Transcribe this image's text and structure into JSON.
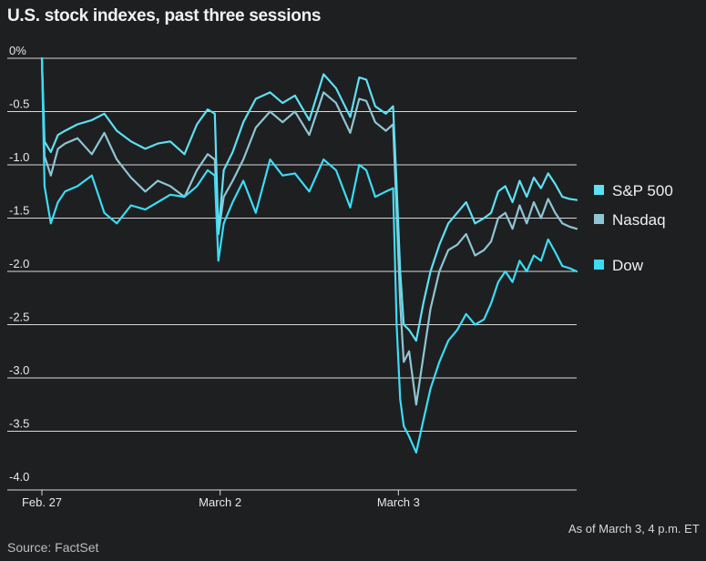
{
  "title": "U.S. stock indexes, past three sessions",
  "note": "As of March 3, 4 p.m. ET",
  "source": "Source: FactSet",
  "chart_data": {
    "type": "line",
    "title": "U.S. stock indexes, past three sessions",
    "ylim": [
      -4.0,
      0.0
    ],
    "y_ticks": [
      0,
      -0.5,
      -1.0,
      -1.5,
      -2.0,
      -2.5,
      -3.0,
      -3.5,
      -4.0
    ],
    "y_tick_labels": [
      "0%",
      "-0.5",
      "-1.0",
      "-1.5",
      "-2.0",
      "-2.5",
      "-3.0",
      "-3.5",
      "-4.0"
    ],
    "x_range": [
      0,
      30
    ],
    "x_ticks": [
      0,
      10,
      20
    ],
    "x_tick_labels": [
      "Feb. 27",
      "March 2",
      "March 3"
    ],
    "grid": true,
    "legend": "right",
    "series": [
      {
        "name": "S&P 500",
        "color": "#5ee0f2",
        "x": [
          0,
          0.15,
          0.5,
          0.9,
          1.3,
          2,
          2.8,
          3.5,
          4.2,
          5,
          5.8,
          6.5,
          7.2,
          8,
          8.7,
          9.3,
          9.7,
          9.9,
          10.2,
          10.7,
          11.3,
          12,
          12.8,
          13.5,
          14.2,
          15,
          15.8,
          16.5,
          17.3,
          17.8,
          18.2,
          18.7,
          19.3,
          19.7,
          19.9,
          20.1,
          20.3,
          20.6,
          21,
          21.4,
          21.8,
          22.3,
          22.8,
          23.3,
          23.8,
          24.3,
          24.8,
          25.2,
          25.6,
          26,
          26.4,
          26.8,
          27.2,
          27.6,
          28,
          28.4,
          28.8,
          29.2,
          29.6,
          30
        ],
        "values": [
          0,
          -0.78,
          -0.88,
          -0.72,
          -0.68,
          -0.62,
          -0.58,
          -0.52,
          -0.68,
          -0.78,
          -0.85,
          -0.8,
          -0.78,
          -0.9,
          -0.62,
          -0.48,
          -0.52,
          -1.65,
          -1.05,
          -0.88,
          -0.6,
          -0.38,
          -0.32,
          -0.42,
          -0.35,
          -0.58,
          -0.15,
          -0.28,
          -0.55,
          -0.18,
          -0.2,
          -0.45,
          -0.52,
          -0.45,
          -1.2,
          -2.0,
          -2.5,
          -2.55,
          -2.65,
          -2.3,
          -2.0,
          -1.75,
          -1.55,
          -1.45,
          -1.35,
          -1.55,
          -1.5,
          -1.45,
          -1.25,
          -1.2,
          -1.35,
          -1.15,
          -1.3,
          -1.12,
          -1.22,
          -1.08,
          -1.18,
          -1.3,
          -1.32,
          -1.33
        ]
      },
      {
        "name": "Nasdaq",
        "color": "#8fc5d3",
        "x": [
          0,
          0.15,
          0.5,
          0.9,
          1.3,
          2,
          2.8,
          3.5,
          4.2,
          5,
          5.8,
          6.5,
          7.2,
          8,
          8.7,
          9.3,
          9.7,
          9.9,
          10.2,
          10.7,
          11.3,
          12,
          12.8,
          13.5,
          14.2,
          15,
          15.8,
          16.5,
          17.3,
          17.8,
          18.2,
          18.7,
          19.3,
          19.7,
          19.9,
          20.1,
          20.3,
          20.6,
          21,
          21.4,
          21.8,
          22.3,
          22.8,
          23.3,
          23.8,
          24.3,
          24.8,
          25.2,
          25.6,
          26,
          26.4,
          26.8,
          27.2,
          27.6,
          28,
          28.4,
          28.8,
          29.2,
          29.6,
          30
        ],
        "values": [
          0,
          -0.92,
          -1.1,
          -0.85,
          -0.8,
          -0.75,
          -0.9,
          -0.7,
          -0.95,
          -1.12,
          -1.25,
          -1.15,
          -1.2,
          -1.3,
          -1.05,
          -0.9,
          -0.95,
          -1.65,
          -1.3,
          -1.15,
          -0.95,
          -0.65,
          -0.5,
          -0.6,
          -0.5,
          -0.72,
          -0.32,
          -0.42,
          -0.7,
          -0.38,
          -0.4,
          -0.6,
          -0.68,
          -0.62,
          -1.45,
          -2.3,
          -2.85,
          -2.75,
          -3.25,
          -2.8,
          -2.35,
          -2.0,
          -1.8,
          -1.75,
          -1.65,
          -1.85,
          -1.8,
          -1.72,
          -1.5,
          -1.45,
          -1.6,
          -1.38,
          -1.55,
          -1.35,
          -1.5,
          -1.32,
          -1.45,
          -1.55,
          -1.58,
          -1.6
        ]
      },
      {
        "name": "Dow",
        "color": "#3bdcf5",
        "x": [
          0,
          0.15,
          0.5,
          0.9,
          1.3,
          2,
          2.8,
          3.5,
          4.2,
          5,
          5.8,
          6.5,
          7.2,
          8,
          8.7,
          9.3,
          9.7,
          9.9,
          10.2,
          10.7,
          11.3,
          12,
          12.8,
          13.5,
          14.2,
          15,
          15.8,
          16.5,
          17.3,
          17.8,
          18.2,
          18.7,
          19.3,
          19.7,
          19.9,
          20.1,
          20.3,
          20.6,
          21,
          21.4,
          21.8,
          22.3,
          22.8,
          23.3,
          23.8,
          24.3,
          24.8,
          25.2,
          25.6,
          26,
          26.4,
          26.8,
          27.2,
          27.6,
          28,
          28.4,
          28.8,
          29.2,
          29.6,
          30
        ],
        "values": [
          0,
          -1.2,
          -1.55,
          -1.35,
          -1.25,
          -1.2,
          -1.1,
          -1.45,
          -1.55,
          -1.38,
          -1.42,
          -1.35,
          -1.28,
          -1.3,
          -1.2,
          -1.05,
          -1.1,
          -1.9,
          -1.55,
          -1.35,
          -1.15,
          -1.45,
          -0.95,
          -1.1,
          -1.08,
          -1.25,
          -0.95,
          -1.05,
          -1.4,
          -1.0,
          -1.05,
          -1.3,
          -1.25,
          -1.22,
          -2.5,
          -3.2,
          -3.45,
          -3.55,
          -3.7,
          -3.4,
          -3.1,
          -2.85,
          -2.65,
          -2.55,
          -2.4,
          -2.5,
          -2.45,
          -2.3,
          -2.1,
          -2.0,
          -2.1,
          -1.9,
          -2.0,
          -1.85,
          -1.9,
          -1.7,
          -1.82,
          -1.95,
          -1.97,
          -2.0
        ]
      }
    ]
  }
}
